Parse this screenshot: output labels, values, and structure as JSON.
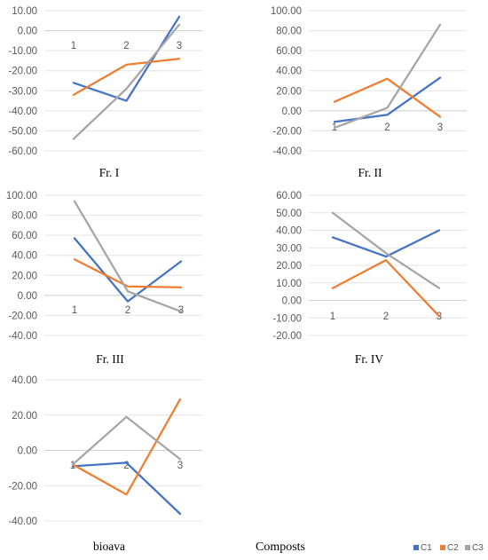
{
  "figure": {
    "caption": "Composts",
    "legend": [
      {
        "name": "C1",
        "color": "#4472C4"
      },
      {
        "name": "C2",
        "color": "#ED7D31"
      },
      {
        "name": "C3",
        "color": "#A5A5A5"
      }
    ]
  },
  "chart_data": [
    {
      "type": "line",
      "title": "Fr. I",
      "categories": [
        "1",
        "2",
        "3"
      ],
      "ylim": [
        -60,
        10
      ],
      "yticks": [
        "10.00",
        "0.00",
        "-10.00",
        "-20.00",
        "-30.00",
        "-40.00",
        "-50.00",
        "-60.00"
      ],
      "grid": true,
      "series": [
        {
          "name": "C1",
          "color": "#4472C4",
          "values": [
            -26,
            -35,
            7
          ]
        },
        {
          "name": "C2",
          "color": "#ED7D31",
          "values": [
            -32,
            -17,
            -14
          ]
        },
        {
          "name": "C3",
          "color": "#A5A5A5",
          "values": [
            -54,
            -29,
            3
          ]
        }
      ]
    },
    {
      "type": "line",
      "title": "Fr. II",
      "categories": [
        "1",
        "2",
        "3"
      ],
      "ylim": [
        -40,
        100
      ],
      "yticks": [
        "100.00",
        "80.00",
        "60.00",
        "40.00",
        "20.00",
        "0.00",
        "-20.00",
        "-40.00"
      ],
      "grid": true,
      "series": [
        {
          "name": "C1",
          "color": "#4472C4",
          "values": [
            -11,
            -4,
            33
          ]
        },
        {
          "name": "C2",
          "color": "#ED7D31",
          "values": [
            9,
            32,
            -6
          ]
        },
        {
          "name": "C3",
          "color": "#A5A5A5",
          "values": [
            -17,
            3,
            86
          ]
        }
      ]
    },
    {
      "type": "line",
      "title": "Fr. III",
      "categories": [
        "1",
        "2",
        "3"
      ],
      "ylim": [
        -40,
        100
      ],
      "yticks": [
        "100.00",
        "80.00",
        "60.00",
        "40.00",
        "20.00",
        "0.00",
        "-20.00",
        "-40.00"
      ],
      "grid": true,
      "series": [
        {
          "name": "C1",
          "color": "#4472C4",
          "values": [
            57,
            -6,
            34
          ]
        },
        {
          "name": "C2",
          "color": "#ED7D31",
          "values": [
            36,
            9,
            8
          ]
        },
        {
          "name": "C3",
          "color": "#A5A5A5",
          "values": [
            94,
            4,
            -16
          ]
        }
      ]
    },
    {
      "type": "line",
      "title": "Fr. IV",
      "categories": [
        "1",
        "2",
        "3"
      ],
      "ylim": [
        -20,
        60
      ],
      "yticks": [
        "60.00",
        "50.00",
        "40.00",
        "30.00",
        "20.00",
        "10.00",
        "0.00",
        "-10.00",
        "-20.00"
      ],
      "grid": true,
      "series": [
        {
          "name": "C1",
          "color": "#4472C4",
          "values": [
            36,
            25,
            40
          ]
        },
        {
          "name": "C2",
          "color": "#ED7D31",
          "values": [
            7,
            23,
            -9
          ]
        },
        {
          "name": "C3",
          "color": "#A5A5A5",
          "values": [
            50,
            27,
            7
          ]
        }
      ]
    },
    {
      "type": "line",
      "title": "bioava",
      "categories": [
        "1",
        "2",
        "3"
      ],
      "ylim": [
        -40,
        40
      ],
      "yticks": [
        "40.00",
        "20.00",
        "0.00",
        "-20.00",
        "-40.00"
      ],
      "grid": true,
      "series": [
        {
          "name": "C1",
          "color": "#4472C4",
          "values": [
            -9,
            -7,
            -36
          ]
        },
        {
          "name": "C2",
          "color": "#ED7D31",
          "values": [
            -8,
            -25,
            29
          ]
        },
        {
          "name": "C3",
          "color": "#A5A5A5",
          "values": [
            -8,
            19,
            -5
          ]
        }
      ]
    }
  ]
}
